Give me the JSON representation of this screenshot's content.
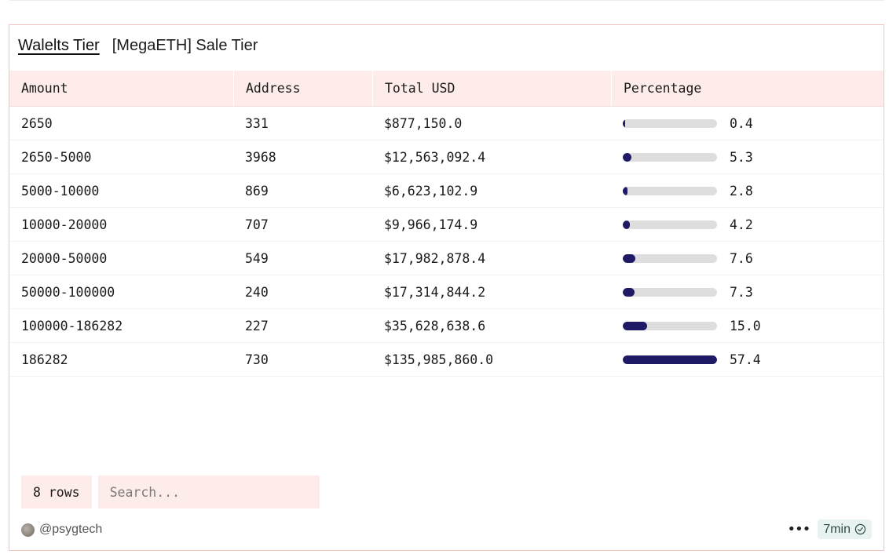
{
  "header": {
    "active_tab": "Walelts Tier",
    "subtitle": "[MegaETH] Sale Tier"
  },
  "table": {
    "columns": [
      "Amount",
      "Address",
      "Total USD",
      "Percentage"
    ],
    "rows": [
      {
        "amount": "2650",
        "address": "331",
        "total_usd": "$877,150.0",
        "percentage": "0.4",
        "pct_value": 0.4
      },
      {
        "amount": "2650-5000",
        "address": "3968",
        "total_usd": "$12,563,092.4",
        "percentage": "5.3",
        "pct_value": 5.3
      },
      {
        "amount": "5000-10000",
        "address": "869",
        "total_usd": "$6,623,102.9",
        "percentage": "2.8",
        "pct_value": 2.8
      },
      {
        "amount": "10000-20000",
        "address": "707",
        "total_usd": "$9,966,174.9",
        "percentage": "4.2",
        "pct_value": 4.2
      },
      {
        "amount": "20000-50000",
        "address": "549",
        "total_usd": "$17,982,878.4",
        "percentage": "7.6",
        "pct_value": 7.6
      },
      {
        "amount": "50000-100000",
        "address": "240",
        "total_usd": "$17,314,844.2",
        "percentage": "7.3",
        "pct_value": 7.3
      },
      {
        "amount": "100000-186282",
        "address": "227",
        "total_usd": "$35,628,638.6",
        "percentage": "15.0",
        "pct_value": 15.0
      },
      {
        "amount": "186282",
        "address": "730",
        "total_usd": "$135,985,860.0",
        "percentage": "57.4",
        "pct_value": 57.4
      }
    ],
    "bar_max": 57.4
  },
  "footer": {
    "rows_label": "8 rows",
    "search_placeholder": "Search...",
    "author": "@psygtech",
    "time_label": "7min"
  },
  "colors": {
    "bar_fill": "#1e1a66",
    "bar_track": "#dedede",
    "header_bg": "#fdecea",
    "panel_border": "#f3c6bd"
  },
  "icons": {
    "more": "more-horizontal-icon",
    "verified": "check-circle-icon",
    "avatar": "avatar"
  }
}
